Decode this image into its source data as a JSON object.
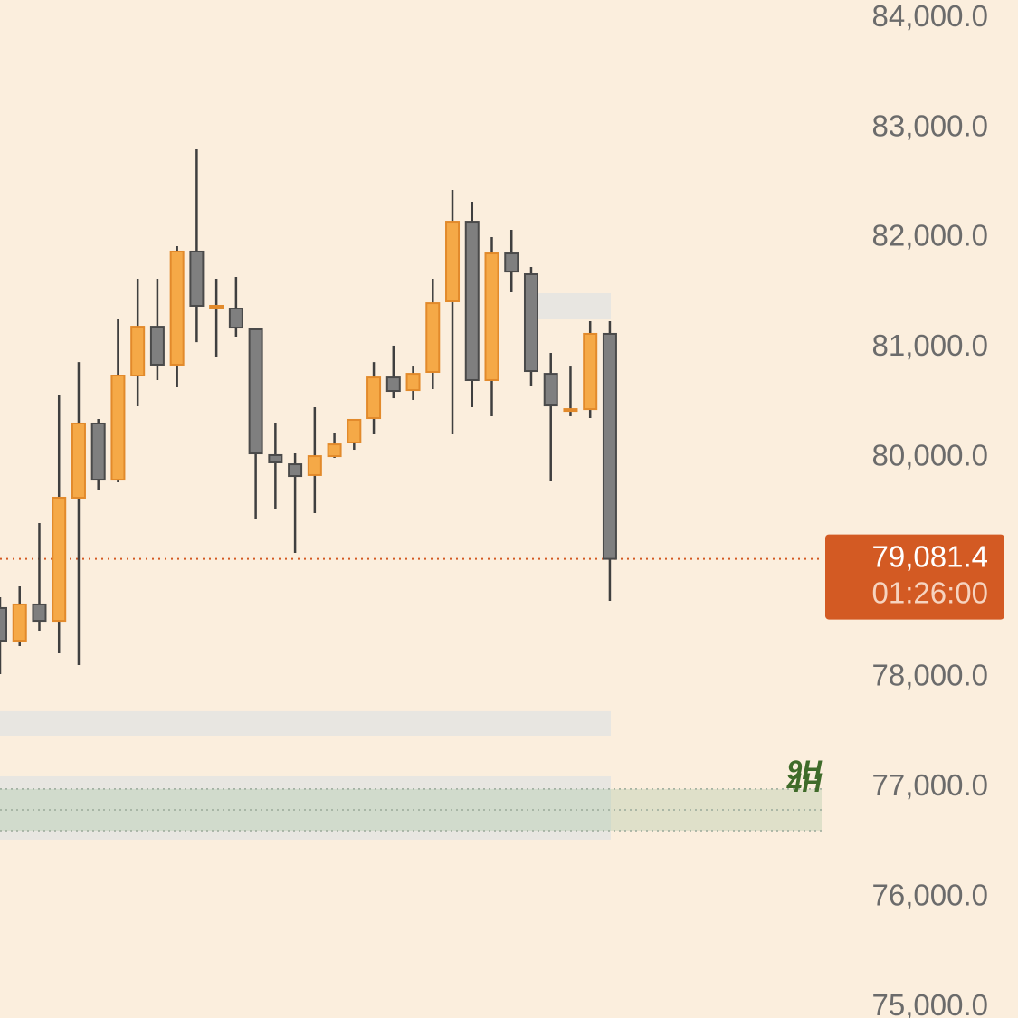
{
  "chart_data": {
    "type": "candlestick",
    "ylim": [
      74905,
      84165
    ],
    "yticks": [
      {
        "value": 75000,
        "label": "75,000.0"
      },
      {
        "value": 76000,
        "label": "76,000.0"
      },
      {
        "value": 77000,
        "label": "77,000.0"
      },
      {
        "value": 78000,
        "label": "78,000.0"
      },
      {
        "value": 80000,
        "label": "80,000.0"
      },
      {
        "value": 81000,
        "label": "81,000.0"
      },
      {
        "value": 82000,
        "label": "82,000.0"
      },
      {
        "value": 83000,
        "label": "83,000.0"
      },
      {
        "value": 84000,
        "label": "84,000.0"
      }
    ],
    "open": [
      78634,
      78337,
      78667,
      78518,
      79638,
      80313,
      79802,
      80749,
      81193,
      80848,
      81877,
      81383,
      81358,
      81169,
      80025,
      79942,
      79844,
      80016,
      80140,
      80362,
      80732,
      80617,
      80782,
      81424,
      82148,
      80708,
      81860,
      81671,
      80765,
      80444,
      80444,
      81128
    ],
    "high": [
      78732,
      78831,
      79407,
      80568,
      80872,
      80354,
      81259,
      81630,
      81630,
      81926,
      82807,
      81630,
      81646,
      81169,
      80313,
      80041,
      80461,
      80230,
      80346,
      80872,
      81021,
      80831,
      81630,
      82436,
      82329,
      82008,
      82074,
      81737,
      80955,
      80831,
      81243,
      81243
    ],
    "low": [
      78033,
      78288,
      78428,
      78222,
      78115,
      79712,
      79778,
      80469,
      80708,
      80642,
      81053,
      80914,
      81103,
      79449,
      79531,
      79136,
      79498,
      80000,
      80074,
      80214,
      80543,
      80527,
      80626,
      80214,
      80461,
      80379,
      81506,
      80650,
      79786,
      80379,
      80362,
      78700
    ],
    "close": [
      78337,
      78667,
      78518,
      79638,
      80313,
      79802,
      80749,
      81193,
      80848,
      81877,
      81383,
      81383,
      81185,
      80041,
      79959,
      79835,
      80016,
      80123,
      80346,
      80732,
      80609,
      80765,
      81407,
      82148,
      80708,
      81860,
      81695,
      80790,
      80477,
      80444,
      81128,
      79081.4
    ],
    "zones": [
      {
        "low": 81259,
        "high": 81498
      },
      {
        "low": 77473,
        "high": 77696
      },
      {
        "low": 76527,
        "high": 77103
      },
      {
        "low": 76609,
        "high": 76988
      }
    ],
    "zone_labels": [
      "9H",
      "4H"
    ],
    "last_price": {
      "value": 79081.4,
      "label": "79,081.4"
    },
    "countdown": "01:26:00"
  }
}
